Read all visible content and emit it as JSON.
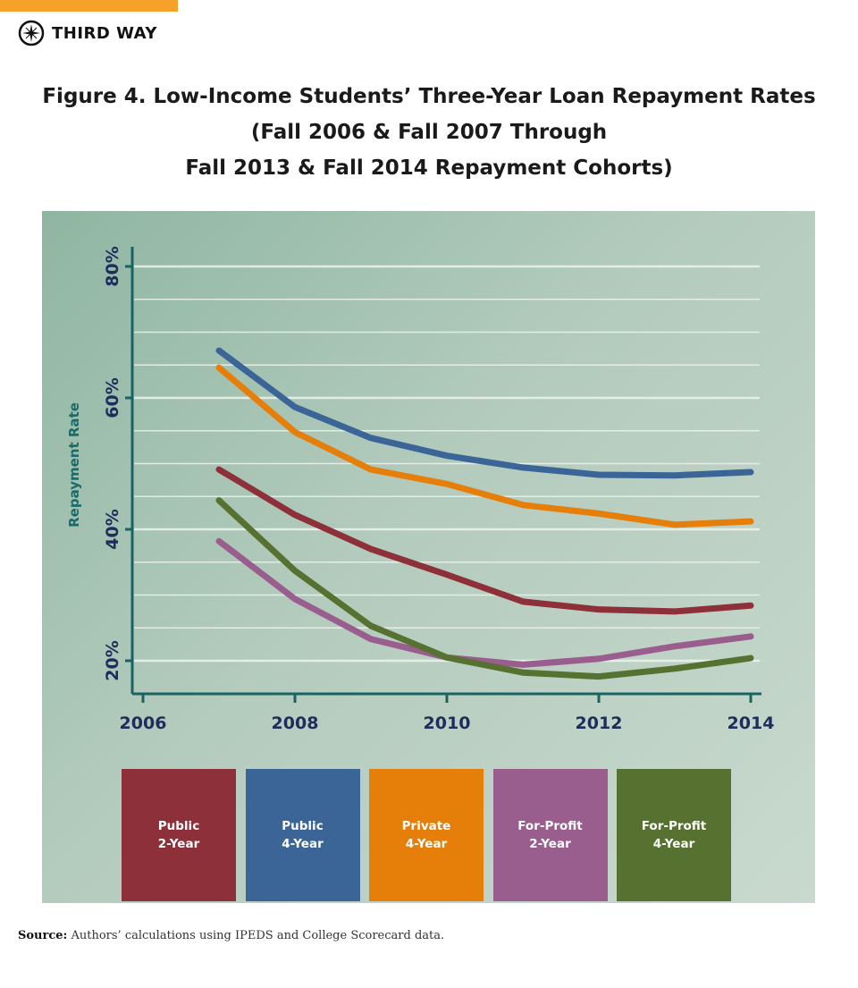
{
  "brand": {
    "name": "THIRD WAY",
    "accent": "#f7a12b"
  },
  "title_lines": [
    "Figure 4. Low-Income Students’ Three-Year Loan Repayment Rates",
    "(Fall 2006 & Fall 2007 Through",
    "Fall 2013 & Fall 2014 Repayment Cohorts)"
  ],
  "source": {
    "label": "Source:",
    "text": " Authors’ calculations using IPEDS and College Scorecard data."
  },
  "chart_data": {
    "type": "line",
    "title": "Figure 4. Low-Income Students’ Three-Year Loan Repayment Rates (Fall 2006 & Fall 2007 Through Fall 2013 & Fall 2014 Repayment Cohorts)",
    "xlabel": "",
    "ylabel": "Repayment Rate",
    "xlim": [
      2006,
      2014
    ],
    "ylim": [
      18,
      82
    ],
    "xticks": [
      "2006",
      "2008",
      "2010",
      "2012",
      "2014"
    ],
    "yticks": [
      "20%",
      "40%",
      "60%",
      "80%"
    ],
    "grid": true,
    "legend_placement": "bottom",
    "x": [
      2007,
      2008,
      2009,
      2010,
      2011,
      2012,
      2013,
      2014
    ],
    "series": [
      {
        "name": "Public 2-Year",
        "color": "#8e3039",
        "values": [
          49.1,
          42.2,
          37.0,
          33.1,
          29.0,
          27.8,
          27.5,
          28.4
        ]
      },
      {
        "name": "Public 4-Year",
        "color": "#3a6596",
        "values": [
          67.2,
          58.6,
          53.9,
          51.2,
          49.4,
          48.3,
          48.2,
          48.7
        ]
      },
      {
        "name": "Private 4-Year",
        "color": "#e67e0a",
        "values": [
          64.6,
          54.8,
          49.1,
          46.9,
          43.7,
          42.4,
          40.7,
          41.2
        ]
      },
      {
        "name": "For-Profit 2-Year",
        "color": "#9a5e8e",
        "values": [
          38.2,
          29.4,
          23.3,
          20.5,
          19.4,
          20.3,
          22.2,
          23.7
        ]
      },
      {
        "name": "For-Profit 4-Year",
        "color": "#567130",
        "values": [
          44.4,
          33.7,
          25.3,
          20.5,
          18.2,
          17.6,
          18.8,
          20.4
        ]
      }
    ],
    "legend": [
      [
        "Public",
        "2-Year"
      ],
      [
        "Public",
        "4-Year"
      ],
      [
        "Private",
        "4-Year"
      ],
      [
        "For-Profit",
        "2-Year"
      ],
      [
        "For-Profit",
        "4-Year"
      ]
    ]
  }
}
